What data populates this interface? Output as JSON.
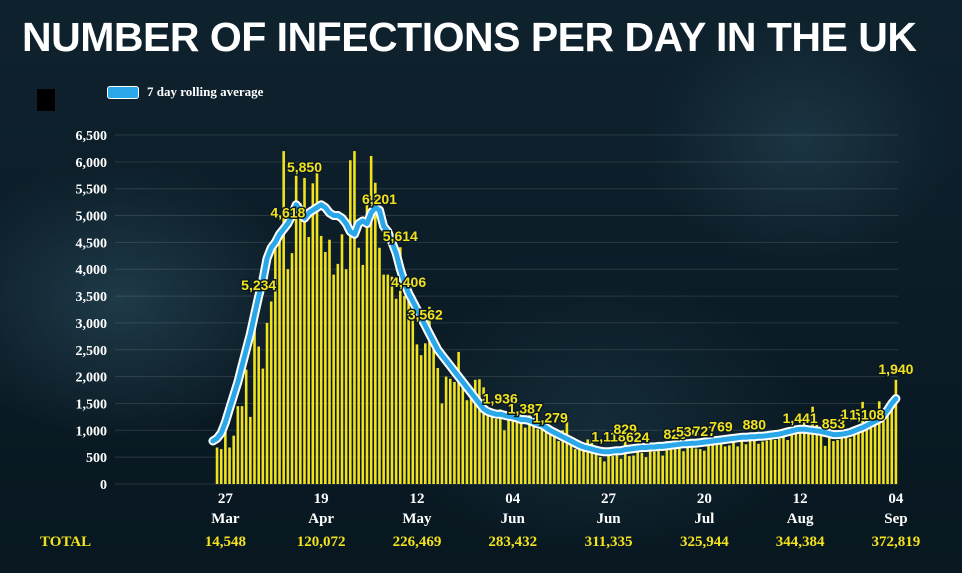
{
  "title": "NUMBER OF INFECTIONS PER DAY IN THE UK",
  "legend": {
    "label": "7 day rolling average",
    "color": "#2aa7e8"
  },
  "colors": {
    "bar": "#f2e21e",
    "line": "#2aa7e8",
    "text": "#ffffff",
    "label": "#f2e21e"
  },
  "totals": {
    "label": "TOTAL",
    "values": [
      "14,548",
      "120,072",
      "226,469",
      "283,432",
      "311,335",
      "325,944",
      "344,384",
      "372,819"
    ]
  },
  "chart_data": {
    "type": "bar",
    "ylim": [
      0,
      6500
    ],
    "yticks": [
      0,
      500,
      1000,
      1500,
      2000,
      2500,
      3000,
      3500,
      4000,
      4500,
      5000,
      5500,
      6000,
      6500
    ],
    "ytick_labels": [
      "0",
      "500",
      "1,000",
      "1,500",
      "2,000",
      "2,500",
      "3,000",
      "3,500",
      "4,000",
      "4,500",
      "5,000",
      "5,500",
      "6,000",
      "6,500"
    ],
    "x_range": [
      "2020-03-01",
      "2020-09-04"
    ],
    "xticks": [
      {
        "date": "2020-03-27",
        "day": "27",
        "month": "Mar"
      },
      {
        "date": "2020-04-19",
        "day": "19",
        "month": "Apr"
      },
      {
        "date": "2020-05-12",
        "day": "12",
        "month": "May"
      },
      {
        "date": "2020-06-04",
        "day": "04",
        "month": "Jun"
      },
      {
        "date": "2020-06-27",
        "day": "27",
        "month": "Jun"
      },
      {
        "date": "2020-07-20",
        "day": "20",
        "month": "Jul"
      },
      {
        "date": "2020-08-12",
        "day": "12",
        "month": "Aug"
      },
      {
        "date": "2020-09-04",
        "day": "04",
        "month": "Sep"
      }
    ],
    "series": [
      {
        "type": "bar",
        "values": [
          680,
          650,
          1000,
          680,
          900,
          1450,
          1450,
          2130,
          1250,
          2880,
          2560,
          2150,
          3000,
          3400,
          4540,
          4580,
          6200,
          4000,
          4300,
          5870,
          5230,
          5700,
          4600,
          5600,
          5850,
          4620,
          4320,
          4550,
          3900,
          4100,
          4650,
          4000,
          6030,
          6200,
          4400,
          4080,
          5300,
          6110,
          5610,
          4400,
          3900,
          3900,
          3860,
          3450,
          4410,
          3500,
          3560,
          3400,
          2600,
          2400,
          2620,
          3300,
          2500,
          2160,
          1500,
          2000,
          1960,
          1900,
          2460,
          1950,
          1560,
          1600,
          1940,
          1950,
          1800,
          1390,
          1300,
          1210,
          1390,
          1000,
          1200,
          1250,
          1330,
          1150,
          1050,
          1280,
          1080,
          1020,
          1120,
          1150,
          1030,
          950,
          800,
          1000,
          1200,
          830,
          650,
          680,
          700,
          830,
          830,
          620,
          500,
          420,
          680,
          520,
          560,
          470,
          820,
          520,
          530,
          600,
          580,
          500,
          650,
          600,
          640,
          530,
          800,
          640,
          720,
          760,
          610,
          770,
          790,
          660,
          650,
          620,
          800,
          780,
          860,
          870,
          700,
          720,
          880,
          700,
          820,
          740,
          860,
          900,
          750,
          790,
          810,
          900,
          820,
          840,
          920,
          820,
          1020,
          950,
          1010,
          1190,
          1000,
          1440,
          1100,
          1030,
          710,
          1050,
          800,
          820,
          1300,
          1020,
          850,
          940,
          1100,
          1530,
          1050,
          1300,
          1110,
          1540,
          1250,
          1310,
          1510,
          1940
        ]
      },
      {
        "type": "line",
        "values": [
          800,
          850,
          950,
          1150,
          1400,
          1650,
          1900,
          2200,
          2500,
          2800,
          3150,
          3500,
          3800,
          4200,
          4400,
          4500,
          4650,
          4750,
          4850,
          5000,
          5200,
          5100,
          4950,
          5050,
          5100,
          5150,
          5200,
          5150,
          5050,
          5000,
          5000,
          4950,
          4850,
          4700,
          4650,
          4850,
          4900,
          4850,
          5050,
          5150,
          5100,
          4800,
          4700,
          4500,
          4300,
          4000,
          3750,
          3550,
          3400,
          3250,
          3100,
          2950,
          2800,
          2650,
          2500,
          2400,
          2300,
          2200,
          2100,
          2000,
          1900,
          1800,
          1700,
          1600,
          1500,
          1400,
          1350,
          1320,
          1300,
          1300,
          1280,
          1260,
          1250,
          1230,
          1200,
          1200,
          1180,
          1150,
          1120,
          1100,
          1050,
          1000,
          960,
          920,
          880,
          840,
          800,
          760,
          720,
          690,
          670,
          650,
          630,
          610,
          600,
          600,
          610,
          620,
          620,
          640,
          650,
          660,
          670,
          680,
          680,
          690,
          690,
          700,
          700,
          710,
          720,
          730,
          740,
          750,
          750,
          760,
          760,
          770,
          780,
          790,
          800,
          810,
          820,
          830,
          840,
          850,
          860,
          870,
          870,
          880,
          880,
          890,
          890,
          900,
          910,
          920,
          930,
          950,
          970,
          990,
          1010,
          1020,
          1020,
          1010,
          1000,
          990,
          980,
          960,
          940,
          920,
          920,
          930,
          940,
          960,
          990,
          1020,
          1050,
          1090,
          1130,
          1170,
          1210,
          1280,
          1380,
          1500,
          1590
        ]
      }
    ],
    "annotations": [
      {
        "text": "5,234",
        "date": "2020-04-04"
      },
      {
        "text": "4,618",
        "date": "2020-04-11"
      },
      {
        "text": "5,850",
        "date": "2020-04-15"
      },
      {
        "text": "6,201",
        "date": "2020-05-03"
      },
      {
        "text": "4,406",
        "date": "2020-05-10"
      },
      {
        "text": "5,614",
        "date": "2020-05-08"
      },
      {
        "text": "3,562",
        "date": "2020-05-14"
      },
      {
        "text": "1,936",
        "date": "2020-06-01"
      },
      {
        "text": "1,387",
        "date": "2020-06-07"
      },
      {
        "text": "1,279",
        "date": "2020-06-13"
      },
      {
        "text": "1,118",
        "date": "2020-06-27"
      },
      {
        "text": "829",
        "date": "2020-07-01"
      },
      {
        "text": "624",
        "date": "2020-07-04"
      },
      {
        "text": "820",
        "date": "2020-07-13"
      },
      {
        "text": "536",
        "date": "2020-07-16"
      },
      {
        "text": "727",
        "date": "2020-07-20"
      },
      {
        "text": "769",
        "date": "2020-07-24"
      },
      {
        "text": "880",
        "date": "2020-08-01"
      },
      {
        "text": "1,441",
        "date": "2020-08-12"
      },
      {
        "text": "853",
        "date": "2020-08-20"
      },
      {
        "text": "1,522",
        "date": "2020-08-26"
      },
      {
        "text": "1,108",
        "date": "2020-08-28"
      },
      {
        "text": "1,940",
        "date": "2020-09-04"
      }
    ]
  }
}
